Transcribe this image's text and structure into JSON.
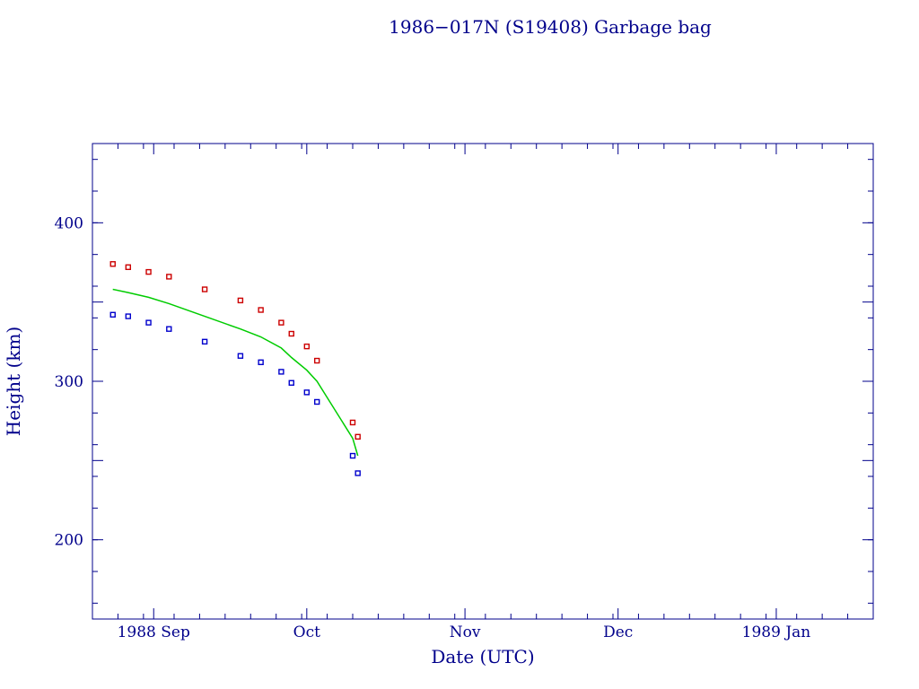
{
  "chart_data": {
    "type": "scatter",
    "title": "1986−017N (S19408) Garbage bag",
    "xlabel": "Date (UTC)",
    "ylabel": "Height (km)",
    "xlim": [
      "1988-08-20",
      "1989-01-20"
    ],
    "ylim": [
      150,
      450
    ],
    "x_ticks": [
      {
        "date": "1988-09-01",
        "label": "1988 Sep"
      },
      {
        "date": "1988-10-01",
        "label": "Oct"
      },
      {
        "date": "1988-11-01",
        "label": "Nov"
      },
      {
        "date": "1988-12-01",
        "label": "Dec"
      },
      {
        "date": "1989-01-01",
        "label": "1989 Jan"
      }
    ],
    "y_ticks": [
      200,
      300,
      400
    ],
    "colors": {
      "axes": "#00008b",
      "apogee": "#cc0000",
      "perigee": "#0000cc",
      "mean": "#00cc00"
    },
    "series": [
      {
        "key": "apogee",
        "points": [
          {
            "date": "1988-08-24",
            "value": 374
          },
          {
            "date": "1988-08-27",
            "value": 372
          },
          {
            "date": "1988-08-31",
            "value": 369
          },
          {
            "date": "1988-09-04",
            "value": 366
          },
          {
            "date": "1988-09-11",
            "value": 358
          },
          {
            "date": "1988-09-18",
            "value": 351
          },
          {
            "date": "1988-09-22",
            "value": 345
          },
          {
            "date": "1988-09-26",
            "value": 337
          },
          {
            "date": "1988-09-28",
            "value": 330
          },
          {
            "date": "1988-10-01",
            "value": 322
          },
          {
            "date": "1988-10-03",
            "value": 313
          },
          {
            "date": "1988-10-10",
            "value": 274
          },
          {
            "date": "1988-10-11",
            "value": 265
          }
        ]
      },
      {
        "key": "perigee",
        "points": [
          {
            "date": "1988-08-24",
            "value": 342
          },
          {
            "date": "1988-08-27",
            "value": 341
          },
          {
            "date": "1988-08-31",
            "value": 337
          },
          {
            "date": "1988-09-04",
            "value": 333
          },
          {
            "date": "1988-09-11",
            "value": 325
          },
          {
            "date": "1988-09-18",
            "value": 316
          },
          {
            "date": "1988-09-22",
            "value": 312
          },
          {
            "date": "1988-09-26",
            "value": 306
          },
          {
            "date": "1988-09-28",
            "value": 299
          },
          {
            "date": "1988-10-01",
            "value": 293
          },
          {
            "date": "1988-10-03",
            "value": 287
          },
          {
            "date": "1988-10-10",
            "value": 253
          },
          {
            "date": "1988-10-11",
            "value": 242
          }
        ]
      },
      {
        "key": "mean",
        "line": true,
        "points": [
          {
            "date": "1988-08-24",
            "value": 358
          },
          {
            "date": "1988-08-27",
            "value": 356
          },
          {
            "date": "1988-08-31",
            "value": 353
          },
          {
            "date": "1988-09-04",
            "value": 349
          },
          {
            "date": "1988-09-11",
            "value": 341
          },
          {
            "date": "1988-09-18",
            "value": 333
          },
          {
            "date": "1988-09-22",
            "value": 328
          },
          {
            "date": "1988-09-26",
            "value": 321
          },
          {
            "date": "1988-09-28",
            "value": 315
          },
          {
            "date": "1988-10-01",
            "value": 307
          },
          {
            "date": "1988-10-03",
            "value": 300
          },
          {
            "date": "1988-10-10",
            "value": 264
          },
          {
            "date": "1988-10-11",
            "value": 253
          }
        ]
      }
    ]
  }
}
